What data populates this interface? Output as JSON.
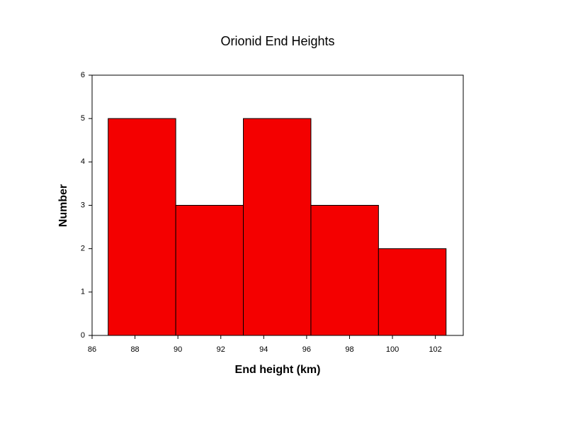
{
  "chart_data": {
    "type": "histogram",
    "title": "Orionid End Heights",
    "x_label": "End height (km)",
    "y_label": "Number",
    "bins": [
      86.75,
      89.9,
      93.05,
      96.2,
      99.35,
      102.5
    ],
    "values": [
      5,
      3,
      5,
      3,
      2
    ],
    "color": "#f40000",
    "xlim": [
      86,
      103.3
    ],
    "xticks": [
      86,
      88,
      90,
      92,
      94,
      96,
      98,
      100,
      102
    ],
    "ylim": [
      0,
      6
    ],
    "yticks": [
      0,
      1,
      2,
      3,
      4,
      5,
      6
    ]
  }
}
